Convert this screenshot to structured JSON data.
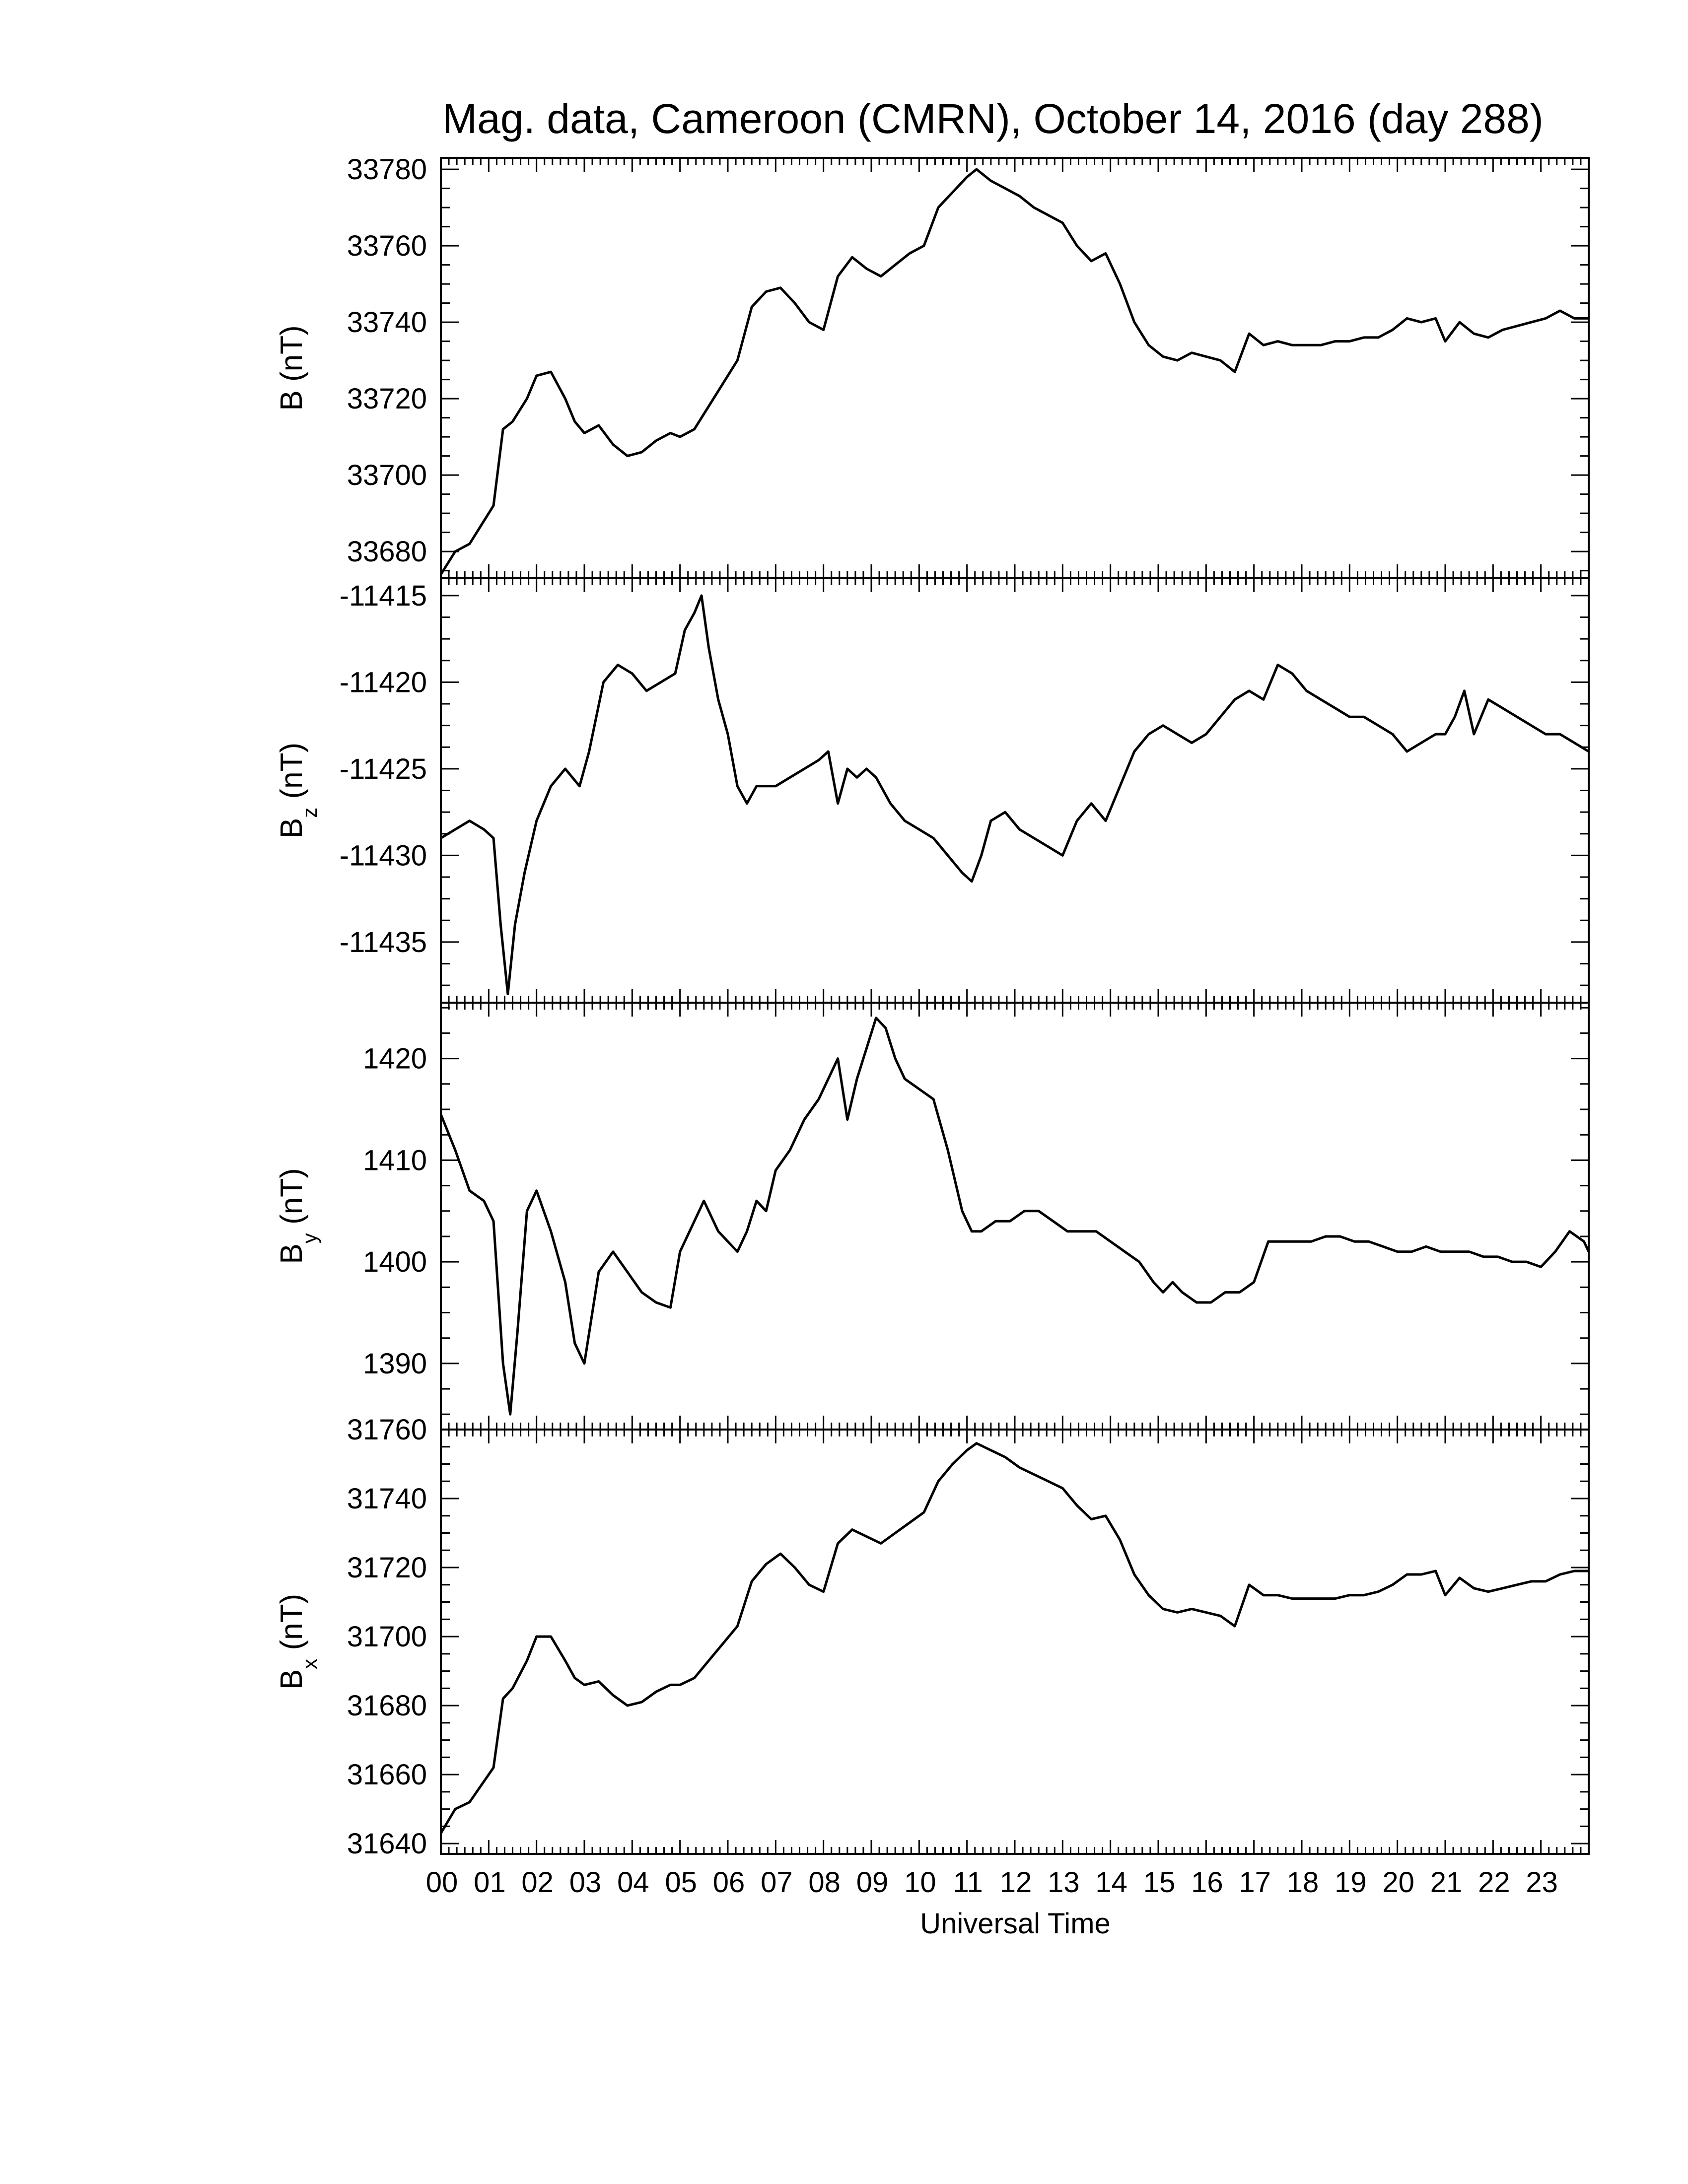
{
  "chart_data": {
    "type": "line",
    "title": "Mag. data, Cameroon (CMRN), October 14, 2016 (day 288)",
    "xlabel": "Universal Time",
    "xlim": [
      0,
      24
    ],
    "x_ticks": [
      0,
      1,
      2,
      3,
      4,
      5,
      6,
      7,
      8,
      9,
      10,
      11,
      12,
      13,
      14,
      15,
      16,
      17,
      18,
      19,
      20,
      21,
      22,
      23
    ],
    "x_tick_labels": [
      "00",
      "01",
      "02",
      "03",
      "04",
      "05",
      "06",
      "07",
      "08",
      "09",
      "10",
      "11",
      "12",
      "13",
      "14",
      "15",
      "16",
      "17",
      "18",
      "19",
      "20",
      "21",
      "22",
      "23"
    ],
    "panels": [
      {
        "ylabel": "B",
        "ylabel_sub": "",
        "ylabel_unit": "(nT)",
        "ylim": [
          33673,
          33783
        ],
        "y_ticks": [
          33680,
          33700,
          33720,
          33740,
          33760,
          33780
        ],
        "y_tick_labels": [
          "33680",
          "33700",
          "33720",
          "33740",
          "33760",
          "33780"
        ],
        "series": [
          {
            "x": [
              0,
              0.3,
              0.6,
              0.9,
              1.1,
              1.3,
              1.5,
              1.8,
              2.0,
              2.3,
              2.6,
              2.8,
              3.0,
              3.3,
              3.6,
              3.9,
              4.2,
              4.5,
              4.8,
              5.0,
              5.3,
              5.6,
              5.9,
              6.2,
              6.5,
              6.8,
              7.1,
              7.4,
              7.7,
              8.0,
              8.3,
              8.6,
              8.9,
              9.2,
              9.5,
              9.8,
              10.1,
              10.4,
              10.7,
              11.0,
              11.2,
              11.5,
              11.8,
              12.1,
              12.4,
              12.7,
              13.0,
              13.3,
              13.6,
              13.9,
              14.2,
              14.5,
              14.8,
              15.1,
              15.4,
              15.7,
              16.0,
              16.3,
              16.6,
              16.9,
              17.2,
              17.5,
              17.8,
              18.1,
              18.4,
              18.7,
              19.0,
              19.3,
              19.6,
              19.9,
              20.2,
              20.5,
              20.8,
              21.0,
              21.3,
              21.6,
              21.9,
              22.2,
              22.5,
              22.8,
              23.1,
              23.4,
              23.7,
              24.0
            ],
            "y": [
              33674,
              33680,
              33682,
              33688,
              33692,
              33712,
              33714,
              33720,
              33726,
              33727,
              33720,
              33714,
              33711,
              33713,
              33708,
              33705,
              33706,
              33709,
              33711,
              33710,
              33712,
              33718,
              33724,
              33730,
              33744,
              33748,
              33749,
              33745,
              33740,
              33738,
              33752,
              33757,
              33754,
              33752,
              33755,
              33758,
              33760,
              33770,
              33774,
              33778,
              33780,
              33777,
              33775,
              33773,
              33770,
              33768,
              33766,
              33760,
              33756,
              33758,
              33750,
              33740,
              33734,
              33731,
              33730,
              33732,
              33731,
              33730,
              33727,
              33737,
              33734,
              33735,
              33734,
              33734,
              33734,
              33735,
              33735,
              33736,
              33736,
              33738,
              33741,
              33740,
              33741,
              33735,
              33740,
              33737,
              33736,
              33738,
              33739,
              33740,
              33741,
              33743,
              33741,
              33741
            ]
          }
        ]
      },
      {
        "ylabel": "B",
        "ylabel_sub": "z",
        "ylabel_unit": "(nT)",
        "ylim": [
          -11438.5,
          -11414
        ],
        "y_ticks": [
          -11415,
          -11420,
          -11425,
          -11430,
          -11435
        ],
        "y_tick_labels": [
          "-11415",
          "-11420",
          "-11425",
          "-11430",
          "-11435"
        ],
        "series": [
          {
            "x": [
              0,
              0.3,
              0.6,
              0.9,
              1.1,
              1.25,
              1.4,
              1.55,
              1.75,
              2.0,
              2.3,
              2.6,
              2.9,
              3.1,
              3.4,
              3.7,
              4.0,
              4.3,
              4.6,
              4.9,
              5.1,
              5.3,
              5.45,
              5.6,
              5.8,
              6.0,
              6.2,
              6.4,
              6.6,
              6.8,
              7.0,
              7.3,
              7.6,
              7.9,
              8.1,
              8.3,
              8.5,
              8.7,
              8.9,
              9.1,
              9.4,
              9.7,
              10.0,
              10.3,
              10.6,
              10.9,
              11.1,
              11.3,
              11.5,
              11.8,
              12.1,
              12.4,
              12.7,
              13.0,
              13.3,
              13.6,
              13.9,
              14.2,
              14.5,
              14.8,
              15.1,
              15.4,
              15.7,
              16.0,
              16.3,
              16.6,
              16.9,
              17.2,
              17.5,
              17.8,
              18.1,
              18.4,
              18.7,
              19.0,
              19.3,
              19.6,
              19.9,
              20.2,
              20.5,
              20.8,
              21.0,
              21.2,
              21.4,
              21.6,
              21.9,
              22.2,
              22.5,
              22.8,
              23.1,
              23.4,
              23.7,
              24.0
            ],
            "y": [
              -11429,
              -11428.5,
              -11428,
              -11428.5,
              -11429,
              -11434,
              -11438,
              -11434,
              -11431,
              -11428,
              -11426,
              -11425,
              -11426,
              -11424,
              -11420,
              -11419,
              -11419.5,
              -11420.5,
              -11420,
              -11419.5,
              -11417,
              -11416,
              -11415,
              -11418,
              -11421,
              -11423,
              -11426,
              -11427,
              -11426,
              -11426,
              -11426,
              -11425.5,
              -11425,
              -11424.5,
              -11424,
              -11427,
              -11425,
              -11425.5,
              -11425,
              -11425.5,
              -11427,
              -11428,
              -11428.5,
              -11429,
              -11430,
              -11431,
              -11431.5,
              -11430,
              -11428,
              -11427.5,
              -11428.5,
              -11429,
              -11429.5,
              -11430,
              -11428,
              -11427,
              -11428,
              -11426,
              -11424,
              -11423,
              -11422.5,
              -11423,
              -11423.5,
              -11423,
              -11422,
              -11421,
              -11420.5,
              -11421,
              -11419,
              -11419.5,
              -11420.5,
              -11421,
              -11421.5,
              -11422,
              -11422,
              -11422.5,
              -11423,
              -11424,
              -11423.5,
              -11423,
              -11423,
              -11422,
              -11420.5,
              -11423,
              -11421,
              -11421.5,
              -11422,
              -11422.5,
              -11423,
              -11423,
              -11423.5,
              -11424
            ]
          }
        ]
      },
      {
        "ylabel": "B",
        "ylabel_sub": "y",
        "ylabel_unit": "(nT)",
        "ylim": [
          1383.5,
          1425.5
        ],
        "y_ticks": [
          1390,
          1400,
          1410,
          1420
        ],
        "y_tick_labels": [
          "1390",
          "1400",
          "1410",
          "1420"
        ],
        "series": [
          {
            "x": [
              0,
              0.3,
              0.6,
              0.9,
              1.1,
              1.3,
              1.45,
              1.6,
              1.8,
              2.0,
              2.3,
              2.6,
              2.8,
              3.0,
              3.3,
              3.6,
              3.9,
              4.2,
              4.5,
              4.8,
              5.0,
              5.3,
              5.5,
              5.8,
              6.0,
              6.2,
              6.4,
              6.6,
              6.8,
              7.0,
              7.3,
              7.6,
              7.9,
              8.1,
              8.3,
              8.5,
              8.7,
              8.9,
              9.1,
              9.3,
              9.5,
              9.7,
              10.0,
              10.3,
              10.6,
              10.9,
              11.1,
              11.3,
              11.6,
              11.9,
              12.2,
              12.5,
              12.8,
              13.1,
              13.4,
              13.7,
              14.0,
              14.3,
              14.6,
              14.9,
              15.1,
              15.3,
              15.5,
              15.8,
              16.1,
              16.4,
              16.7,
              17.0,
              17.3,
              17.6,
              17.9,
              18.2,
              18.5,
              18.8,
              19.1,
              19.4,
              19.7,
              20.0,
              20.3,
              20.6,
              20.9,
              21.2,
              21.5,
              21.8,
              22.1,
              22.4,
              22.7,
              23.0,
              23.3,
              23.6,
              23.9,
              24.0
            ],
            "y": [
              1414.5,
              1411,
              1407,
              1406,
              1404,
              1390,
              1385,
              1393,
              1405,
              1407,
              1403,
              1398,
              1392,
              1390,
              1399,
              1401,
              1399,
              1397,
              1396,
              1395.5,
              1401,
              1404,
              1406,
              1403,
              1402,
              1401,
              1403,
              1406,
              1405,
              1409,
              1411,
              1414,
              1416,
              1418,
              1420,
              1414,
              1418,
              1421,
              1424,
              1423,
              1420,
              1418,
              1417,
              1416,
              1411,
              1405,
              1403,
              1403,
              1404,
              1404,
              1405,
              1405,
              1404,
              1403,
              1403,
              1403,
              1402,
              1401,
              1400,
              1398,
              1397,
              1398,
              1397,
              1396,
              1396,
              1397,
              1397,
              1398,
              1402,
              1402,
              1402,
              1402,
              1402.5,
              1402.5,
              1402,
              1402,
              1401.5,
              1401,
              1401,
              1401.5,
              1401,
              1401,
              1401,
              1400.5,
              1400.5,
              1400,
              1400,
              1399.5,
              1401,
              1403,
              1402,
              1401
            ]
          }
        ]
      },
      {
        "ylabel": "B",
        "ylabel_sub": "x",
        "ylabel_unit": "(nT)",
        "ylim": [
          31637,
          31760
        ],
        "y_ticks": [
          31640,
          31660,
          31680,
          31700,
          31720,
          31740,
          31760
        ],
        "y_tick_labels": [
          "31640",
          "31660",
          "31680",
          "31700",
          "31720",
          "31740",
          "31760"
        ],
        "series": [
          {
            "x": [
              0,
              0.3,
              0.6,
              0.9,
              1.1,
              1.3,
              1.5,
              1.8,
              2.0,
              2.3,
              2.6,
              2.8,
              3.0,
              3.3,
              3.6,
              3.9,
              4.2,
              4.5,
              4.8,
              5.0,
              5.3,
              5.6,
              5.9,
              6.2,
              6.5,
              6.8,
              7.1,
              7.4,
              7.7,
              8.0,
              8.3,
              8.6,
              8.9,
              9.2,
              9.5,
              9.8,
              10.1,
              10.4,
              10.7,
              11.0,
              11.2,
              11.5,
              11.8,
              12.1,
              12.4,
              12.7,
              13.0,
              13.3,
              13.6,
              13.9,
              14.2,
              14.5,
              14.8,
              15.1,
              15.4,
              15.7,
              16.0,
              16.3,
              16.6,
              16.9,
              17.2,
              17.5,
              17.8,
              18.1,
              18.4,
              18.7,
              19.0,
              19.3,
              19.6,
              19.9,
              20.2,
              20.5,
              20.8,
              21.0,
              21.3,
              21.6,
              21.9,
              22.2,
              22.5,
              22.8,
              23.1,
              23.4,
              23.7,
              24.0
            ],
            "y": [
              31643,
              31650,
              31652,
              31658,
              31662,
              31682,
              31685,
              31693,
              31700,
              31700,
              31693,
              31688,
              31686,
              31687,
              31683,
              31680,
              31681,
              31684,
              31686,
              31686,
              31688,
              31693,
              31698,
              31703,
              31716,
              31721,
              31724,
              31720,
              31715,
              31713,
              31727,
              31731,
              31729,
              31727,
              31730,
              31733,
              31736,
              31745,
              31750,
              31754,
              31756,
              31754,
              31752,
              31749,
              31747,
              31745,
              31743,
              31738,
              31734,
              31735,
              31728,
              31718,
              31712,
              31708,
              31707,
              31708,
              31707,
              31706,
              31703,
              31715,
              31712,
              31712,
              31711,
              31711,
              31711,
              31711,
              31712,
              31712,
              31713,
              31715,
              31718,
              31718,
              31719,
              31712,
              31717,
              31714,
              31713,
              31714,
              31715,
              31716,
              31716,
              31718,
              31719,
              31719
            ]
          }
        ]
      }
    ]
  }
}
